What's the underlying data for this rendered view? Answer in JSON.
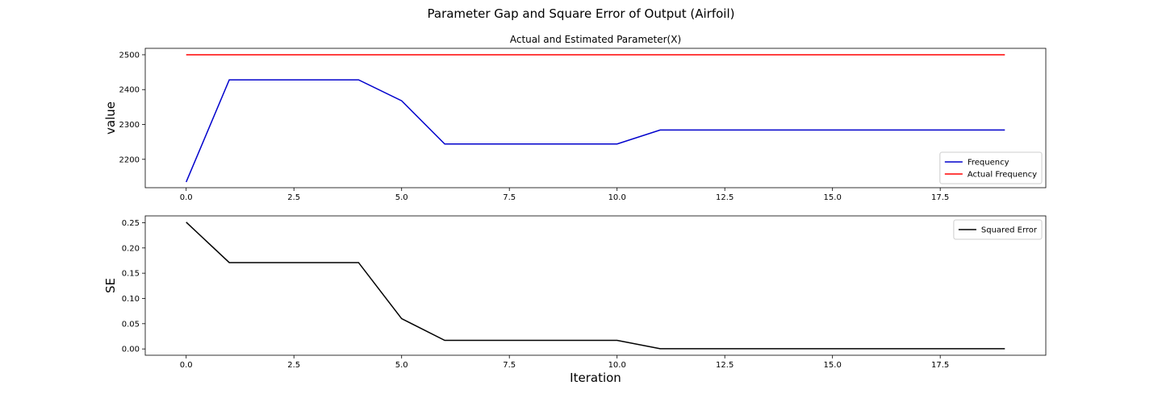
{
  "figure": {
    "title": "Parameter Gap and Square Error of Output (Airfoil)"
  },
  "chart_data": [
    {
      "type": "line",
      "title": "Actual and Estimated Parameter(X)",
      "xlabel": "",
      "ylabel": "value",
      "xlim": [
        -0.95,
        19.95
      ],
      "ylim": [
        2118.6,
        2518.4
      ],
      "xticks": [
        0.0,
        2.5,
        5.0,
        7.5,
        10.0,
        12.5,
        15.0,
        17.5
      ],
      "xtick_labels": [
        "0.0",
        "2.5",
        "5.0",
        "7.5",
        "10.0",
        "12.5",
        "15.0",
        "17.5"
      ],
      "yticks": [
        2200,
        2300,
        2400,
        2500
      ],
      "ytick_labels": [
        "2200",
        "2300",
        "2400",
        "2500"
      ],
      "grid": false,
      "legend": "lower-right",
      "x": [
        0,
        1,
        2,
        3,
        4,
        5,
        6,
        7,
        8,
        9,
        10,
        11,
        12,
        13,
        14,
        15,
        16,
        17,
        18,
        19
      ],
      "series": [
        {
          "name": "Frequency",
          "color": "#0000cc",
          "values": [
            2135,
            2428,
            2428,
            2428,
            2428,
            2368,
            2244,
            2244,
            2244,
            2244,
            2244,
            2284,
            2284,
            2284,
            2284,
            2284,
            2284,
            2284,
            2284,
            2284
          ]
        },
        {
          "name": "Actual Frequency",
          "color": "#ff0000",
          "values": [
            2500,
            2500,
            2500,
            2500,
            2500,
            2500,
            2500,
            2500,
            2500,
            2500,
            2500,
            2500,
            2500,
            2500,
            2500,
            2500,
            2500,
            2500,
            2500,
            2500
          ]
        }
      ]
    },
    {
      "type": "line",
      "title": "",
      "xlabel": "Iteration",
      "ylabel": "SE",
      "xlim": [
        -0.95,
        19.95
      ],
      "ylim": [
        -0.0125,
        0.2635
      ],
      "xticks": [
        0.0,
        2.5,
        5.0,
        7.5,
        10.0,
        12.5,
        15.0,
        17.5
      ],
      "xtick_labels": [
        "0.0",
        "2.5",
        "5.0",
        "7.5",
        "10.0",
        "12.5",
        "15.0",
        "17.5"
      ],
      "yticks": [
        0.0,
        0.05,
        0.1,
        0.15,
        0.2,
        0.25
      ],
      "ytick_labels": [
        "0.00",
        "0.05",
        "0.10",
        "0.15",
        "0.20",
        "0.25"
      ],
      "grid": false,
      "legend": "top-right",
      "x": [
        0,
        1,
        2,
        3,
        4,
        5,
        6,
        7,
        8,
        9,
        10,
        11,
        12,
        13,
        14,
        15,
        16,
        17,
        18,
        19
      ],
      "series": [
        {
          "name": "Squared Error",
          "color": "#000000",
          "values": [
            0.251,
            0.171,
            0.171,
            0.171,
            0.171,
            0.06,
            0.017,
            0.017,
            0.017,
            0.017,
            0.017,
            0.0005,
            0.0005,
            0.0005,
            0.0005,
            0.0005,
            0.0005,
            0.0005,
            0.0005,
            0.0005
          ]
        }
      ]
    }
  ]
}
